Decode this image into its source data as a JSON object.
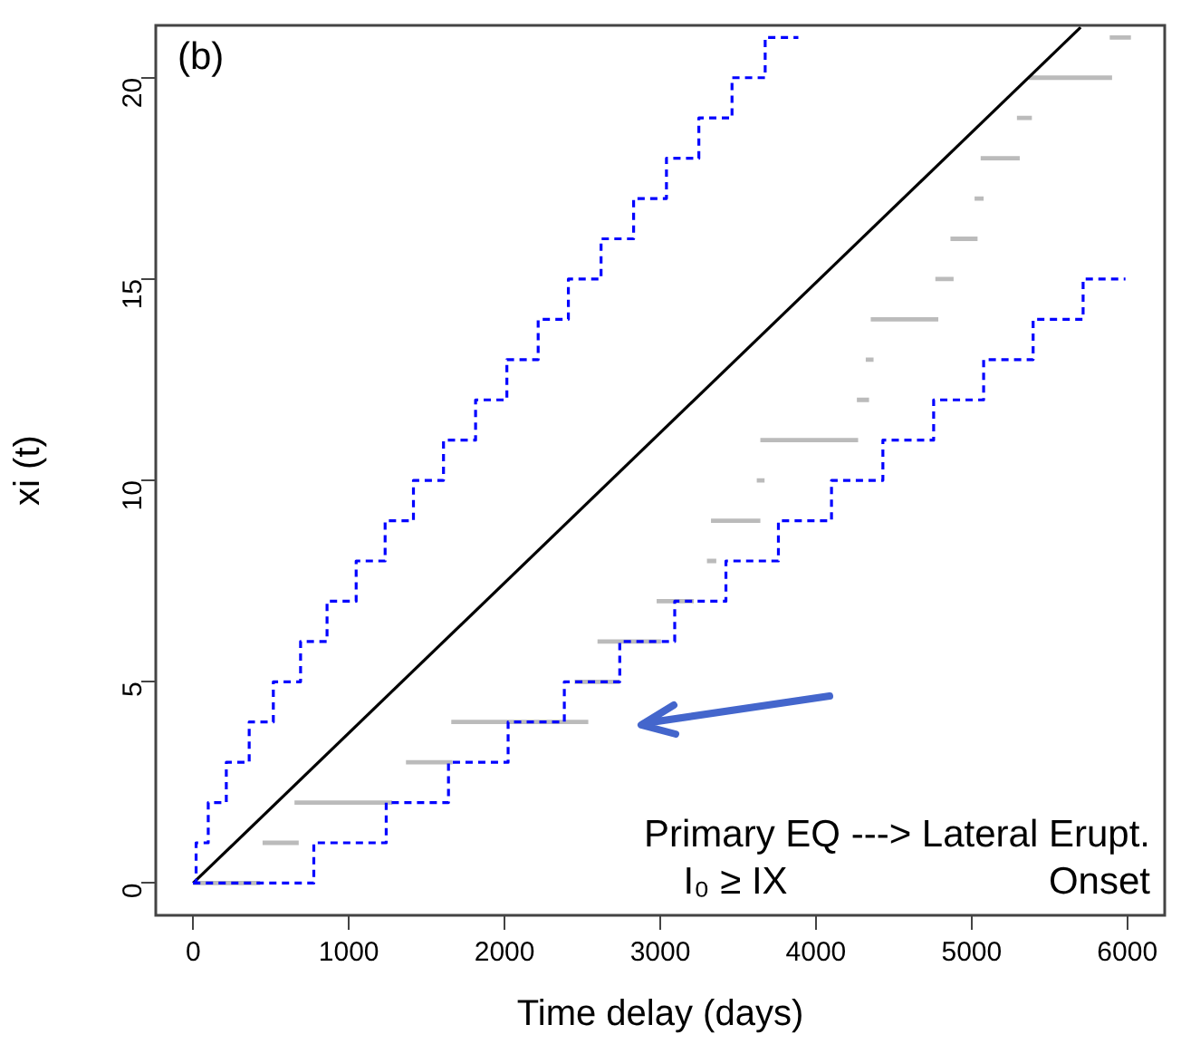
{
  "chart_data": {
    "type": "line",
    "xlabel": "Time delay (days)",
    "ylabel": "xi (t)",
    "xlim": [
      -240,
      6240
    ],
    "ylim": [
      -0.8,
      21.3
    ],
    "xticks": [
      0,
      1000,
      2000,
      3000,
      4000,
      5000,
      6000
    ],
    "yticks": [
      0,
      5,
      10,
      15,
      20
    ],
    "grid": false,
    "legend": false,
    "marker": "none",
    "annotations": [
      "(b)",
      "Primary EQ ---> Lateral Erupt.",
      "I₀ ≥ IX",
      "Onset"
    ],
    "series": [
      {
        "type": "step",
        "color": "#0000ff",
        "line_style": "dashed",
        "x": [
          0,
          19,
          97,
          213,
          360,
          515,
          690,
          860,
          1047,
          1233,
          1415,
          1608,
          1814,
          2015,
          2216,
          2410,
          2620,
          2829,
          3040,
          3248,
          3461,
          3674,
          3887
        ],
        "values": [
          0,
          1,
          2,
          3,
          4,
          5,
          6,
          7,
          8,
          9,
          10,
          11,
          12,
          13,
          14,
          15,
          16,
          17,
          18,
          19,
          20,
          21,
          21
        ]
      },
      {
        "type": "step",
        "color": "#0000ff",
        "line_style": "dashed",
        "x": [
          0,
          775,
          1240,
          1640,
          2023,
          2384,
          2740,
          3093,
          3422,
          3759,
          4100,
          4430,
          4756,
          5077,
          5395,
          5716,
          5988
        ],
        "values": [
          0,
          1,
          2,
          3,
          4,
          5,
          6,
          7,
          8,
          9,
          10,
          11,
          12,
          13,
          14,
          15,
          15
        ]
      },
      {
        "color": "#000000",
        "line_style": "solid",
        "x": [
          0,
          5700
        ],
        "values": [
          0,
          21.25
        ]
      },
      {
        "type": "line",
        "color": "#bbbbbb",
        "line_style": "solid",
        "x": [
          0,
          430,
          null,
          446,
          678,
          null,
          651,
          1279,
          null,
          1367,
          1666,
          null,
          1658,
          2538,
          null,
          2450,
          2740,
          null,
          2597,
          3005,
          null,
          2977,
          3216,
          null,
          3300,
          3360,
          null,
          3326,
          3643,
          null,
          3620,
          3670,
          null,
          3643,
          4271,
          null,
          4263,
          4341,
          null,
          4320,
          4370,
          null,
          4352,
          4786,
          null,
          4767,
          4884,
          null,
          4864,
          5038,
          null,
          5019,
          5077,
          null,
          5058,
          5309,
          null,
          5291,
          5387,
          null,
          5367,
          5902,
          null,
          5887,
          6023
        ],
        "values": [
          0,
          0,
          null,
          1,
          1,
          null,
          2,
          2,
          null,
          3,
          3,
          null,
          4,
          4,
          null,
          5,
          5,
          null,
          6,
          6,
          null,
          7,
          7,
          null,
          8,
          8,
          null,
          9,
          9,
          null,
          10,
          10,
          null,
          11,
          11,
          null,
          12,
          12,
          null,
          13,
          13,
          null,
          14,
          14,
          null,
          15,
          15,
          null,
          16,
          16,
          null,
          17,
          17,
          null,
          18,
          18,
          null,
          19,
          19,
          null,
          20,
          20,
          null,
          21,
          21
        ]
      }
    ]
  }
}
